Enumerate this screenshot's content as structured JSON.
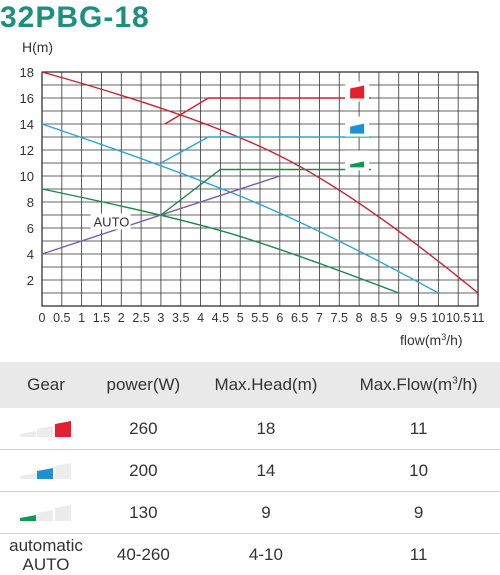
{
  "title": "32PBG-18",
  "chart_data": {
    "type": "line",
    "ylabel": "H(m)",
    "xlabel_main": "flow(m",
    "xlabel_sup": "3",
    "xlabel_end": "/h)",
    "xlim": [
      0,
      11
    ],
    "ylim": [
      0,
      18
    ],
    "x_ticks": [
      "0",
      "0.5",
      "1",
      "1.5",
      "2",
      "2.5",
      "3",
      "3.5",
      "4",
      "4.5",
      "5",
      "5.5",
      "6",
      "6.5",
      "7",
      "7.5",
      "8",
      "8.5",
      "9",
      "9.5",
      "10",
      "10.5",
      "11"
    ],
    "x_tick_values": [
      0,
      0.5,
      1,
      1.5,
      2,
      2.5,
      3,
      3.5,
      4,
      4.5,
      5,
      5.5,
      6,
      6.5,
      7,
      7.5,
      8,
      8.5,
      9,
      9.5,
      10,
      10.5,
      11
    ],
    "y_ticks": [
      "2",
      "4",
      "6",
      "8",
      "10",
      "12",
      "14",
      "16",
      "18"
    ],
    "y_tick_values": [
      2,
      4,
      6,
      8,
      10,
      12,
      14,
      16,
      18
    ],
    "grid": true,
    "series": [
      {
        "color": "#cc2233",
        "x": [
          0,
          4,
          8,
          11
        ],
        "y": [
          18,
          14.6,
          8.5,
          1
        ]
      },
      {
        "color": "#2aa6d6",
        "x": [
          0,
          3,
          7,
          10
        ],
        "y": [
          14,
          10.9,
          6,
          1
        ]
      },
      {
        "color": "#1a8a4a",
        "x": [
          0,
          3,
          6,
          9
        ],
        "y": [
          9,
          7.1,
          4.5,
          1
        ]
      },
      {
        "name": "AUTO",
        "color": "#7a5fa8",
        "x": [
          0,
          6
        ],
        "y": [
          4,
          10
        ]
      }
    ],
    "limit_lines": [
      {
        "color": "#cc2233",
        "x": [
          3.1,
          4.2,
          8.3
        ],
        "y": [
          14,
          16,
          16
        ]
      },
      {
        "color": "#2aa6d6",
        "x": [
          3,
          4.2,
          8.3
        ],
        "y": [
          11,
          13,
          13
        ]
      },
      {
        "color": "#1a8a4a",
        "x": [
          3,
          4.5,
          8.3
        ],
        "y": [
          7,
          10.5,
          10.5
        ]
      }
    ],
    "annotations": [
      {
        "text": "AUTO",
        "x": 1.3,
        "y": 6.5
      }
    ],
    "gear_markers": [
      {
        "color": "#e5202e",
        "x": 7.95,
        "y": 16.5
      },
      {
        "color": "#1e90d8",
        "x": 7.95,
        "y": 13.8
      },
      {
        "color": "#0f9a52",
        "x": 7.95,
        "y": 11.2
      }
    ]
  },
  "table": {
    "headers": [
      "Gear",
      "power(W)",
      "Max.Head(m)",
      "Max.Flow(m",
      "3",
      "/h)"
    ],
    "rows": [
      {
        "gear_icon": "red-gear-icon",
        "gear_color": "#e5202e",
        "gear_level": 3,
        "power": "260",
        "head": "18",
        "flow": "11"
      },
      {
        "gear_icon": "blue-gear-icon",
        "gear_color": "#1e90d8",
        "gear_level": 2,
        "power": "200",
        "head": "14",
        "flow": "10"
      },
      {
        "gear_icon": "green-gear-icon",
        "gear_color": "#0f9a52",
        "gear_level": 1,
        "power": "130",
        "head": "9",
        "flow": "9"
      }
    ],
    "auto_row": {
      "label_line1": "automatic",
      "label_line2": "AUTO",
      "power": "40-260",
      "head": "4-10",
      "flow": "11"
    }
  }
}
